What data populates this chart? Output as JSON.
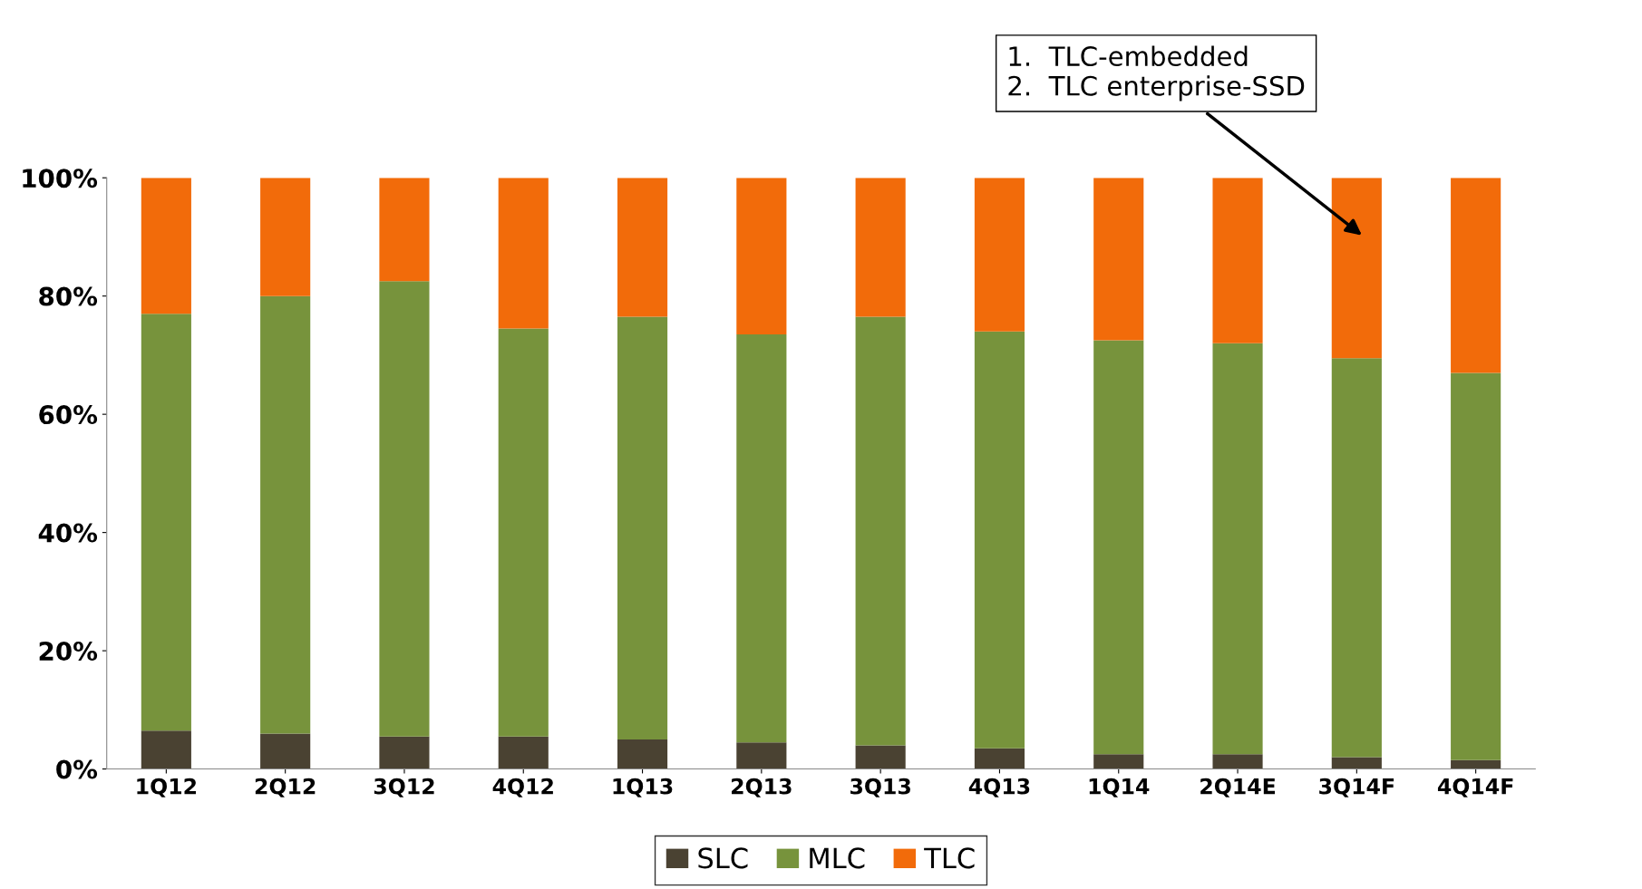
{
  "chart_data": {
    "type": "bar",
    "stacked": true,
    "categories": [
      "1Q12",
      "2Q12",
      "3Q12",
      "4Q12",
      "1Q13",
      "2Q13",
      "3Q13",
      "4Q13",
      "1Q14",
      "2Q14E",
      "3Q14F",
      "4Q14F"
    ],
    "series": [
      {
        "name": "SLC",
        "color": "#4a4232",
        "values": [
          6.5,
          6,
          5.5,
          5.5,
          5,
          4.5,
          4,
          3.5,
          2.5,
          2.5,
          2,
          1.5
        ]
      },
      {
        "name": "MLC",
        "color": "#77933c",
        "values": [
          70.5,
          74,
          77,
          69,
          71.5,
          69,
          72.5,
          70.5,
          70,
          69.5,
          67.5,
          65.5
        ]
      },
      {
        "name": "TLC",
        "color": "#f26b0a",
        "values": [
          23,
          20,
          17.5,
          25.5,
          23.5,
          26.5,
          23.5,
          26,
          27.5,
          28,
          30.5,
          33
        ]
      }
    ],
    "ylim": [
      0,
      100
    ],
    "yticks": [
      {
        "value": 0,
        "label": "0%"
      },
      {
        "value": 20,
        "label": "20%"
      },
      {
        "value": 40,
        "label": "40%"
      },
      {
        "value": 60,
        "label": "60%"
      },
      {
        "value": 80,
        "label": "80%"
      },
      {
        "value": 100,
        "label": "100%"
      }
    ],
    "grid": false,
    "legend": "bottom",
    "annotations": [
      "1.  TLC-embedded\n2.  TLC enterprise-SSD"
    ]
  }
}
